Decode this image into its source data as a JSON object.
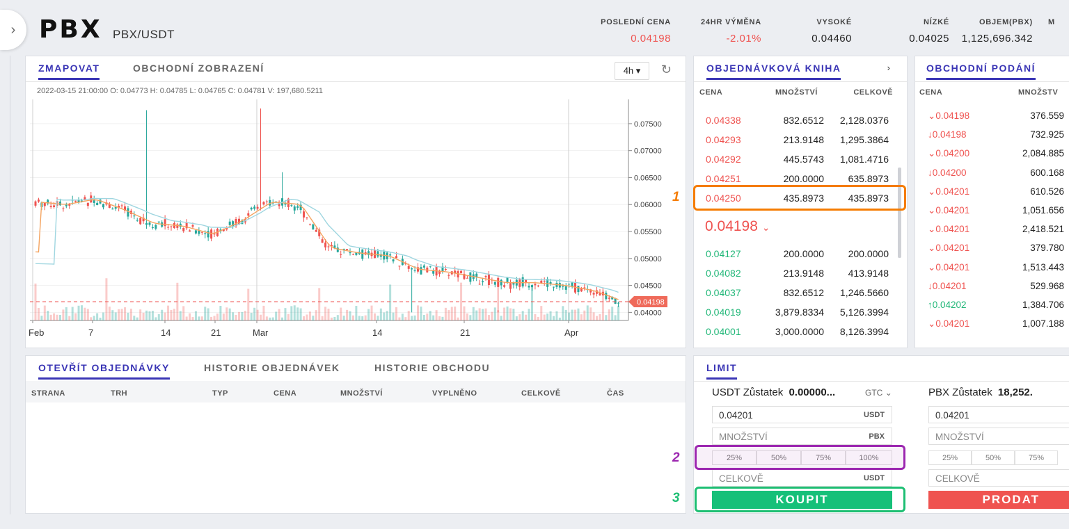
{
  "header": {
    "symbol": "PBX",
    "pair": "PBX/USDT",
    "stats": [
      {
        "label": "POSLEDNÍ CENA",
        "value": "0.04198",
        "color": "#ef5350"
      },
      {
        "label": "24HR VÝMĚNA",
        "value": "-2.01%",
        "color": "#ef5350"
      },
      {
        "label": "VYSOKÉ",
        "value": "0.04460",
        "color": "#222222"
      },
      {
        "label": "NÍZKÉ",
        "value": "0.04025",
        "color": "#222222"
      },
      {
        "label": "OBJEM(PBX)",
        "value": "1,125,696.342",
        "color": "#222222"
      },
      {
        "label": "M",
        "value": "",
        "color": "#222222"
      }
    ]
  },
  "chart_panel": {
    "tabs": [
      "ZMAPOVAT",
      "OBCHODNÍ ZOBRAZENÍ"
    ],
    "interval": "4h ▾",
    "ohlc_info": "2022-03-15 21:00:00  O: 0.04773  H: 0.04785  L: 0.04765  C: 0.04781  V: 197,680.5211"
  },
  "chart_data": {
    "type": "candlestick",
    "x_ticks": [
      "Feb",
      "7",
      "14",
      "21",
      "Mar",
      "14",
      "21",
      "Apr"
    ],
    "y_ticks": [
      "0.07500",
      "0.07000",
      "0.06500",
      "0.06000",
      "0.05500",
      "0.05000",
      "0.04500",
      "0.04000"
    ],
    "ylim": [
      0.0385,
      0.0795
    ],
    "last_price_label": "0.04198",
    "last_price": 0.04198,
    "close_trend": [
      {
        "x": "Feb 1",
        "y": 0.0605
      },
      {
        "x": "Feb 4",
        "y": 0.06
      },
      {
        "x": "Feb 7",
        "y": 0.061
      },
      {
        "x": "Feb 10",
        "y": 0.059
      },
      {
        "x": "Feb 14",
        "y": 0.0565
      },
      {
        "x": "Feb 18",
        "y": 0.056
      },
      {
        "x": "Feb 21",
        "y": 0.0545
      },
      {
        "x": "Feb 24",
        "y": 0.057
      },
      {
        "x": "Feb 27",
        "y": 0.0605
      },
      {
        "x": "Mar 1",
        "y": 0.06
      },
      {
        "x": "Mar 3",
        "y": 0.052
      },
      {
        "x": "Mar 7",
        "y": 0.051
      },
      {
        "x": "Mar 10",
        "y": 0.0505
      },
      {
        "x": "Mar 14",
        "y": 0.048
      },
      {
        "x": "Mar 18",
        "y": 0.0475
      },
      {
        "x": "Mar 21",
        "y": 0.0465
      },
      {
        "x": "Mar 25",
        "y": 0.0455
      },
      {
        "x": "Mar 28",
        "y": 0.0455
      },
      {
        "x": "Apr 1",
        "y": 0.045
      },
      {
        "x": "Apr 4",
        "y": 0.044
      },
      {
        "x": "Apr 6",
        "y": 0.04198
      }
    ],
    "up_color": "#26a69a",
    "down_color": "#ef5350"
  },
  "orderbook": {
    "title": "OBJEDNÁVKOVÁ KNIHA",
    "headers": [
      "CENA",
      "MNOŽSTVÍ",
      "CELKOVĚ"
    ],
    "asks": [
      {
        "price": "0.04338",
        "qty": "832.6512",
        "total": "2,128.0376"
      },
      {
        "price": "0.04293",
        "qty": "213.9148",
        "total": "1,295.3864"
      },
      {
        "price": "0.04292",
        "qty": "445.5743",
        "total": "1,081.4716"
      },
      {
        "price": "0.04251",
        "qty": "200.0000",
        "total": "635.8973"
      },
      {
        "price": "0.04250",
        "qty": "435.8973",
        "total": "435.8973"
      }
    ],
    "mid_price": "0.04198",
    "bids": [
      {
        "price": "0.04127",
        "qty": "200.0000",
        "total": "200.0000"
      },
      {
        "price": "0.04082",
        "qty": "213.9148",
        "total": "413.9148"
      },
      {
        "price": "0.04037",
        "qty": "832.6512",
        "total": "1,246.5660"
      },
      {
        "price": "0.04019",
        "qty": "3,879.8334",
        "total": "5,126.3994"
      },
      {
        "price": "0.04001",
        "qty": "3,000.0000",
        "total": "8,126.3994"
      }
    ]
  },
  "trades": {
    "title": "OBCHODNÍ PODÁNÍ",
    "headers": [
      "CENA",
      "MNOŽSTV"
    ],
    "rows": [
      {
        "arrow": "⌄",
        "price": "0.04198",
        "qty": "376.559",
        "side": "sell"
      },
      {
        "arrow": "↓",
        "price": "0.04198",
        "qty": "732.925",
        "side": "sell"
      },
      {
        "arrow": "⌄",
        "price": "0.04200",
        "qty": "2,084.885",
        "side": "sell"
      },
      {
        "arrow": "↓",
        "price": "0.04200",
        "qty": "600.168",
        "side": "sell"
      },
      {
        "arrow": "⌄",
        "price": "0.04201",
        "qty": "610.526",
        "side": "sell"
      },
      {
        "arrow": "⌄",
        "price": "0.04201",
        "qty": "1,051.656",
        "side": "sell"
      },
      {
        "arrow": "⌄",
        "price": "0.04201",
        "qty": "2,418.521",
        "side": "sell"
      },
      {
        "arrow": "⌄",
        "price": "0.04201",
        "qty": "379.780",
        "side": "sell"
      },
      {
        "arrow": "⌄",
        "price": "0.04201",
        "qty": "1,513.443",
        "side": "sell"
      },
      {
        "arrow": "↓",
        "price": "0.04201",
        "qty": "529.968",
        "side": "sell"
      },
      {
        "arrow": "↑",
        "price": "0.04202",
        "qty": "1,384.706",
        "side": "buy"
      },
      {
        "arrow": "⌄",
        "price": "0.04201",
        "qty": "1,007.188",
        "side": "sell"
      }
    ]
  },
  "orders": {
    "tabs": [
      "OTEVŘÍT OBJEDNÁVKY",
      "HISTORIE OBJEDNÁVEK",
      "HISTORIE OBCHODU"
    ],
    "columns": [
      "STRANA",
      "TRH",
      "TYP",
      "CENA",
      "MNOŽSTVÍ",
      "VYPLNĚNO",
      "CELKOVĚ",
      "ČAS"
    ]
  },
  "limit": {
    "tab": "LIMIT",
    "buy": {
      "balance_label": "USDT Zůstatek",
      "balance_value": "0.00000...",
      "gtc": "GTC",
      "price": "0.04201",
      "price_unit": "USDT",
      "qty_placeholder": "MNOŽSTVÍ",
      "qty_unit": "PBX",
      "percents": [
        "25%",
        "50%",
        "75%",
        "100%"
      ],
      "total_placeholder": "CELKOVĚ",
      "total_unit": "USDT",
      "button": "KOUPIT"
    },
    "sell": {
      "balance_label": "PBX Zůstatek",
      "balance_value": "18,252.",
      "price": "0.04201",
      "qty_placeholder": "MNOŽSTVÍ",
      "percents": [
        "25%",
        "50%",
        "75%"
      ],
      "total_placeholder": "CELKOVĚ",
      "button": "PRODAT"
    }
  },
  "annotations": [
    {
      "label": "1",
      "color": "#f57c00"
    },
    {
      "label": "2",
      "color": "#9c27b0"
    },
    {
      "label": "3",
      "color": "#1dbf73"
    }
  ],
  "colors": {
    "accent": "#3a35b5",
    "buy": "#16c079",
    "sell": "#ef5350"
  }
}
